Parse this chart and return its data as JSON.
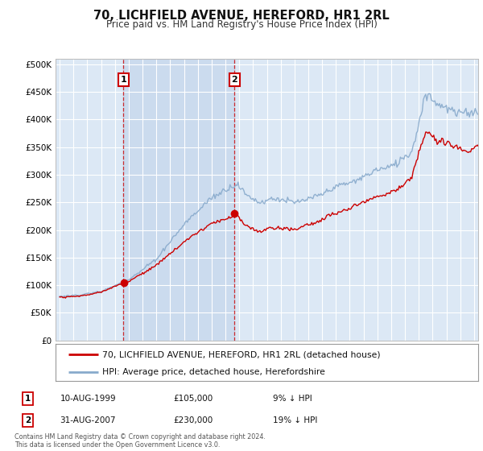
{
  "title": "70, LICHFIELD AVENUE, HEREFORD, HR1 2RL",
  "subtitle": "Price paid vs. HM Land Registry's House Price Index (HPI)",
  "plot_bg_color": "#dce8f5",
  "highlight_bg_color": "#ccdcee",
  "ylabel_color": "#222222",
  "ylim": [
    0,
    510000
  ],
  "yticks": [
    0,
    50000,
    100000,
    150000,
    200000,
    250000,
    300000,
    350000,
    400000,
    450000,
    500000
  ],
  "ytick_labels": [
    "£0",
    "£50K",
    "£100K",
    "£150K",
    "£200K",
    "£250K",
    "£300K",
    "£350K",
    "£400K",
    "£450K",
    "£500K"
  ],
  "sale1_date": "10-AUG-1999",
  "sale1_price": 105000,
  "sale1_year": 1999.625,
  "sale1_label": "9% ↓ HPI",
  "sale2_date": "31-AUG-2007",
  "sale2_price": 230000,
  "sale2_year": 2007.667,
  "sale2_label": "19% ↓ HPI",
  "legend_line1": "70, LICHFIELD AVENUE, HEREFORD, HR1 2RL (detached house)",
  "legend_line2": "HPI: Average price, detached house, Herefordshire",
  "footer": "Contains HM Land Registry data © Crown copyright and database right 2024.\nThis data is licensed under the Open Government Licence v3.0.",
  "red_color": "#cc0000",
  "blue_color": "#88aacc",
  "xmin": 1994.7,
  "xmax": 2025.3
}
